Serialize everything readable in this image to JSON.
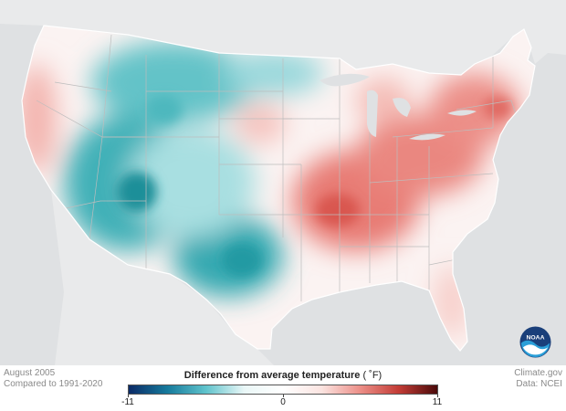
{
  "map": {
    "period": "August 2005",
    "baseline": "Compared to 1991-2020",
    "credit": "Climate.gov",
    "source": "Data: NCEI"
  },
  "legend": {
    "title": "Difference from average temperature",
    "unit": "( ˚F)",
    "min_label": "-11",
    "mid_label": "0",
    "max_label": "11",
    "min_value": -11,
    "max_value": 11,
    "colors": [
      "#0b2a66",
      "#167a9c",
      "#5fc3cc",
      "#eaf7f7",
      "#ffffff",
      "#fbe4e1",
      "#ec8f88",
      "#c33c36",
      "#4a0a0a"
    ]
  },
  "logo": {
    "name": "noaa-logo",
    "text": "NOAA"
  },
  "colors": {
    "background": "#dfe1e3",
    "land_outside": "#e9eaeb",
    "state_lines": "#b9b9b9",
    "cool": "#2aa2aa",
    "warm": "#e3706b"
  }
}
